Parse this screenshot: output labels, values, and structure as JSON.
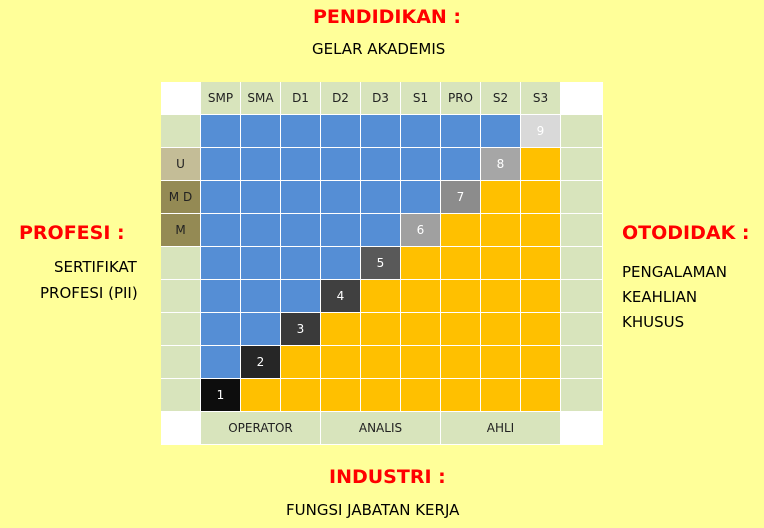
{
  "top": {
    "title": "PENDIDIKAN :",
    "subtitle": "GELAR AKADEMIS"
  },
  "left": {
    "title": "PROFESI :",
    "line1": "SERTIFIKAT",
    "line2": "PROFESI (PII)"
  },
  "right": {
    "title": "OTODIDAK :",
    "line1": "PENGALAMAN",
    "line2": "KEAHLIAN",
    "line3": "KHUSUS"
  },
  "bottom": {
    "title": "INDUSTRI :",
    "subtitle": "FUNGSI JABATAN KERJA"
  },
  "columns": [
    "SMP",
    "SMA",
    "D1",
    "D2",
    "D3",
    "S1",
    "PRO",
    "S2",
    "S3"
  ],
  "rows": [
    {
      "label": "",
      "step": "9",
      "step_color": "#d9d9d9"
    },
    {
      "label": "U",
      "step": "8",
      "step_color": "#a6a6a6"
    },
    {
      "label": "M D",
      "step": "7",
      "step_color": "#8c8c8c"
    },
    {
      "label": "M",
      "step": "6",
      "step_color": "#a0a0a0"
    },
    {
      "label": "",
      "step": "5",
      "step_color": "#595959"
    },
    {
      "label": "",
      "step": "4",
      "step_color": "#404040"
    },
    {
      "label": "",
      "step": "3",
      "step_color": "#3a3a3a"
    },
    {
      "label": "",
      "step": "2",
      "step_color": "#262626"
    },
    {
      "label": "",
      "step": "1",
      "step_color": "#0d0d0d"
    }
  ],
  "footer": [
    "OPERATOR",
    "ANALIS",
    "AHLI"
  ],
  "colors": {
    "background": "#ffff99",
    "title": "#ff0000",
    "blue": "#558ed5",
    "orange": "#ffc000",
    "green": "#d8e4bc",
    "label_u": "#c4bd97",
    "label_md_m": "#948a54"
  }
}
